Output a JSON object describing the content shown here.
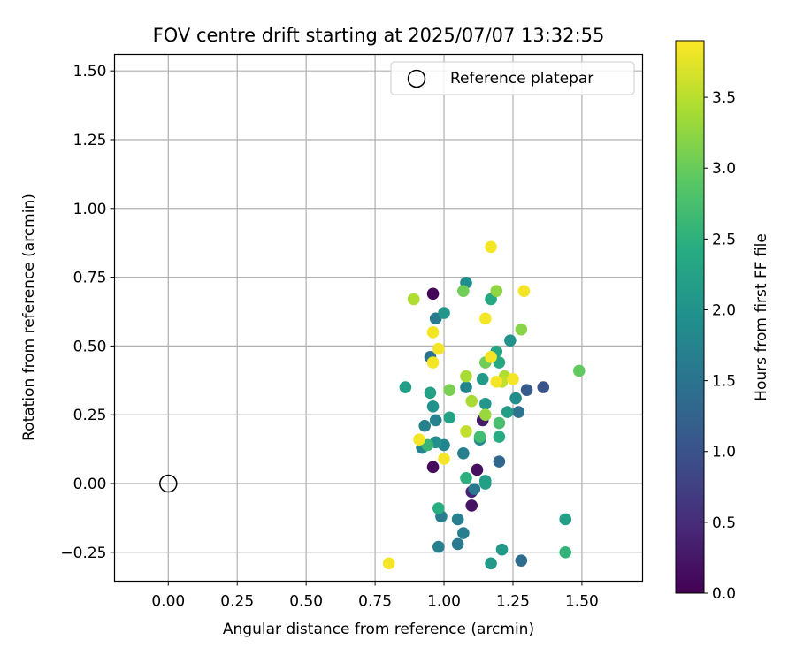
{
  "chart_data": {
    "type": "scatter",
    "title": "FOV centre drift starting at 2025/07/07 13:32:55",
    "xlabel": "Angular distance from reference (arcmin)",
    "ylabel": "Rotation from reference (arcmin)",
    "xlim": [
      -0.195,
      1.72
    ],
    "ylim": [
      -0.355,
      1.56
    ],
    "xticks": [
      0.0,
      0.25,
      0.5,
      0.75,
      1.0,
      1.25,
      1.5
    ],
    "xtick_labels": [
      "0.00",
      "0.25",
      "0.50",
      "0.75",
      "1.00",
      "1.25",
      "1.50"
    ],
    "yticks": [
      -0.25,
      0.0,
      0.25,
      0.5,
      0.75,
      1.0,
      1.25,
      1.5
    ],
    "ytick_labels": [
      "−0.25",
      "0.00",
      "0.25",
      "0.50",
      "0.75",
      "1.00",
      "1.25",
      "1.50"
    ],
    "grid": true,
    "legend": {
      "placement": "top-right",
      "entries": [
        "Reference platepar"
      ]
    },
    "reference_point": {
      "x": 0.0,
      "y": 0.0
    },
    "colorbar": {
      "label": "Hours from first FF file",
      "range": [
        0.0,
        3.9
      ],
      "ticks": [
        0.0,
        0.5,
        1.0,
        1.5,
        2.0,
        2.5,
        3.0,
        3.5
      ],
      "tick_labels": [
        "0.0",
        "0.5",
        "1.0",
        "1.5",
        "2.0",
        "2.5",
        "3.0",
        "3.5"
      ],
      "colormap": "viridis"
    },
    "points": [
      {
        "x": 0.96,
        "y": 0.69,
        "c": 0.05
      },
      {
        "x": 0.96,
        "y": 0.06,
        "c": 0.1
      },
      {
        "x": 1.12,
        "y": 0.05,
        "c": 0.15
      },
      {
        "x": 1.1,
        "y": -0.08,
        "c": 0.2
      },
      {
        "x": 1.14,
        "y": 0.23,
        "c": 0.3
      },
      {
        "x": 1.1,
        "y": -0.03,
        "c": 0.4
      },
      {
        "x": 1.36,
        "y": 0.35,
        "c": 1.0
      },
      {
        "x": 1.3,
        "y": 0.34,
        "c": 1.1
      },
      {
        "x": 1.2,
        "y": 0.08,
        "c": 1.3
      },
      {
        "x": 1.28,
        "y": -0.28,
        "c": 1.4
      },
      {
        "x": 0.95,
        "y": 0.46,
        "c": 1.5
      },
      {
        "x": 1.27,
        "y": 0.26,
        "c": 1.5
      },
      {
        "x": 1.11,
        "y": -0.02,
        "c": 1.55
      },
      {
        "x": 0.97,
        "y": 0.6,
        "c": 1.6
      },
      {
        "x": 1.05,
        "y": -0.22,
        "c": 1.6
      },
      {
        "x": 1.07,
        "y": -0.18,
        "c": 1.65
      },
      {
        "x": 0.99,
        "y": -0.12,
        "c": 1.65
      },
      {
        "x": 0.98,
        "y": -0.23,
        "c": 1.7
      },
      {
        "x": 1.05,
        "y": -0.13,
        "c": 1.7
      },
      {
        "x": 1.07,
        "y": 0.11,
        "c": 1.7
      },
      {
        "x": 0.97,
        "y": 0.23,
        "c": 1.75
      },
      {
        "x": 0.93,
        "y": 0.21,
        "c": 1.75
      },
      {
        "x": 0.92,
        "y": 0.13,
        "c": 1.8
      },
      {
        "x": 1.0,
        "y": 0.14,
        "c": 1.8
      },
      {
        "x": 1.08,
        "y": 0.35,
        "c": 1.8
      },
      {
        "x": 1.13,
        "y": 0.16,
        "c": 1.85
      },
      {
        "x": 1.26,
        "y": 0.31,
        "c": 1.9
      },
      {
        "x": 1.08,
        "y": 0.73,
        "c": 1.9
      },
      {
        "x": 0.97,
        "y": 0.15,
        "c": 1.95
      },
      {
        "x": 1.24,
        "y": 0.52,
        "c": 2.0
      },
      {
        "x": 0.96,
        "y": 0.28,
        "c": 2.0
      },
      {
        "x": 1.0,
        "y": 0.62,
        "c": 2.05
      },
      {
        "x": 1.15,
        "y": 0.29,
        "c": 2.05
      },
      {
        "x": 1.14,
        "y": 0.38,
        "c": 2.1
      },
      {
        "x": 1.21,
        "y": -0.24,
        "c": 2.1
      },
      {
        "x": 1.17,
        "y": -0.29,
        "c": 2.1
      },
      {
        "x": 1.23,
        "y": 0.26,
        "c": 2.15
      },
      {
        "x": 1.15,
        "y": 0.01,
        "c": 2.15
      },
      {
        "x": 1.44,
        "y": -0.13,
        "c": 2.2
      },
      {
        "x": 1.15,
        "y": 0.0,
        "c": 2.2
      },
      {
        "x": 0.86,
        "y": 0.35,
        "c": 2.2
      },
      {
        "x": 0.95,
        "y": 0.33,
        "c": 2.25
      },
      {
        "x": 1.02,
        "y": 0.24,
        "c": 2.25
      },
      {
        "x": 1.19,
        "y": 0.48,
        "c": 2.3
      },
      {
        "x": 1.2,
        "y": 0.44,
        "c": 2.35
      },
      {
        "x": 1.17,
        "y": 0.67,
        "c": 2.35
      },
      {
        "x": 1.2,
        "y": 0.17,
        "c": 2.4
      },
      {
        "x": 0.98,
        "y": -0.09,
        "c": 2.45
      },
      {
        "x": 1.08,
        "y": 0.02,
        "c": 2.5
      },
      {
        "x": 1.44,
        "y": -0.25,
        "c": 2.55
      },
      {
        "x": 0.94,
        "y": 0.14,
        "c": 2.6
      },
      {
        "x": 1.13,
        "y": 0.17,
        "c": 2.7
      },
      {
        "x": 1.2,
        "y": 0.22,
        "c": 2.75
      },
      {
        "x": 1.49,
        "y": 0.41,
        "c": 2.95
      },
      {
        "x": 1.15,
        "y": 0.44,
        "c": 3.05
      },
      {
        "x": 1.07,
        "y": 0.7,
        "c": 3.05
      },
      {
        "x": 1.02,
        "y": 0.34,
        "c": 3.1
      },
      {
        "x": 1.28,
        "y": 0.56,
        "c": 3.2
      },
      {
        "x": 1.19,
        "y": 0.7,
        "c": 3.25
      },
      {
        "x": 1.15,
        "y": 0.25,
        "c": 3.3
      },
      {
        "x": 1.08,
        "y": 0.39,
        "c": 3.4
      },
      {
        "x": 1.1,
        "y": 0.3,
        "c": 3.4
      },
      {
        "x": 1.22,
        "y": 0.39,
        "c": 3.45
      },
      {
        "x": 0.89,
        "y": 0.67,
        "c": 3.45
      },
      {
        "x": 1.08,
        "y": 0.19,
        "c": 3.55
      },
      {
        "x": 1.21,
        "y": 0.37,
        "c": 3.55
      },
      {
        "x": 1.17,
        "y": 0.86,
        "c": 3.85
      },
      {
        "x": 1.29,
        "y": 0.7,
        "c": 3.85
      },
      {
        "x": 0.96,
        "y": 0.55,
        "c": 3.85
      },
      {
        "x": 0.98,
        "y": 0.49,
        "c": 3.85
      },
      {
        "x": 0.96,
        "y": 0.44,
        "c": 3.85
      },
      {
        "x": 1.15,
        "y": 0.6,
        "c": 3.85
      },
      {
        "x": 1.17,
        "y": 0.46,
        "c": 3.85
      },
      {
        "x": 1.25,
        "y": 0.38,
        "c": 3.85
      },
      {
        "x": 1.19,
        "y": 0.37,
        "c": 3.85
      },
      {
        "x": 0.91,
        "y": 0.16,
        "c": 3.85
      },
      {
        "x": 1.0,
        "y": 0.09,
        "c": 3.85
      },
      {
        "x": 0.8,
        "y": -0.29,
        "c": 3.85
      }
    ]
  }
}
